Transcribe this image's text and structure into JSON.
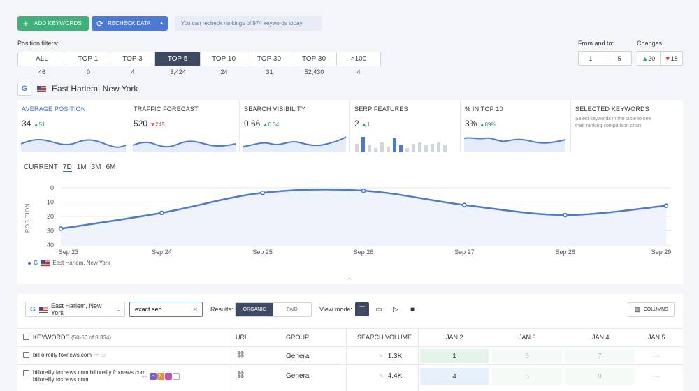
{
  "toolbar": {
    "add_keywords": "ADD KEYWORDS",
    "recheck_data": "RECHECK DATA",
    "recheck_note": "You can recheck rankings of 974 keywords today"
  },
  "position_filters": {
    "label": "Position filters:",
    "items": [
      {
        "label": "ALL",
        "count": "46"
      },
      {
        "label": "TOP 1",
        "count": "0"
      },
      {
        "label": "TOP 3",
        "count": "4"
      },
      {
        "label": "TOP 5",
        "count": "3,424"
      },
      {
        "label": "TOP 10",
        "count": "24"
      },
      {
        "label": "TOP 30",
        "count": "31"
      },
      {
        "label": "TOP 30",
        "count": "52,430"
      },
      {
        "label": ">100",
        "count": "4"
      }
    ],
    "active_index": 3
  },
  "range": {
    "label": "From and to:",
    "from": "1",
    "sep": "-",
    "to": "5"
  },
  "changes": {
    "label": "Changes:",
    "up": "20",
    "down": "18"
  },
  "location": {
    "engine": "G",
    "name": "East Harlem, New York"
  },
  "metrics": [
    {
      "title": "AVERAGE POSITION",
      "value": "34",
      "delta": "51",
      "dir": "up"
    },
    {
      "title": "TRAFFIC FORECAST",
      "value": "520",
      "delta": "245",
      "dir": "down"
    },
    {
      "title": "SEARCH VISIBILITY",
      "value": "0.66",
      "delta": "0.34",
      "dir": "up"
    },
    {
      "title": "SERP FEATURES",
      "value": "2",
      "delta": "1",
      "dir": "up"
    },
    {
      "title": "% IN TOP 10",
      "value": "3%",
      "delta": "89%",
      "dir": "up"
    },
    {
      "title": "SELECTED KEYWORDS",
      "desc": "Select keywords in the table to see their ranking comparison chart"
    }
  ],
  "chart_tabs": [
    "CURRENT",
    "7D",
    "1M",
    "3M",
    "6M"
  ],
  "chart_data": {
    "type": "line",
    "title": "",
    "xlabel": "",
    "ylabel": "POSITION",
    "categories": [
      "Sep 23",
      "Sep 24",
      "Sep 25",
      "Sep 26",
      "Sep 27",
      "Sep 28",
      "Sep 29"
    ],
    "series": [
      {
        "name": "East Harlem, New York",
        "values": [
          28.5,
          17.5,
          3.5,
          2,
          12,
          19,
          12.5
        ]
      }
    ],
    "ylim": [
      0,
      40
    ],
    "yticks": [
      0,
      10,
      20,
      30,
      40
    ],
    "y_inverted": true,
    "grid": true,
    "legend": "bottom-left"
  },
  "table_toolbar": {
    "location": "East Harlem, New York",
    "search_value": "exact seo",
    "results_label": "Results:",
    "organic": "ORGANIC",
    "paid": "PAID",
    "view_mode_label": "View mode:",
    "columns": "COLUMNS"
  },
  "table": {
    "headers": {
      "keywords": "KEYWORDS",
      "count": "(50-60 of 8,334)",
      "url": "URL",
      "group": "GROUP",
      "volume": "SEARCH VOLUME",
      "jan2": "JAN 2",
      "jan3": "JAN 3",
      "jan4": "JAN 4",
      "jan5": "JAN 5"
    },
    "rows": [
      {
        "keyword": "bill o reilly foxnews.com",
        "group": "General",
        "volume": "1.3K",
        "jan2": "1",
        "jan3": "6",
        "jan4": "7",
        "jan5": "···"
      },
      {
        "keyword": "billoreilly foxnews com billoreilly foxnews com billoreilly foxnews com",
        "features": [
          "F",
          "K",
          "T"
        ],
        "group": "General",
        "volume": "4.4K",
        "jan2": "4",
        "jan3": "6",
        "jan4": "9",
        "jan5": "···"
      }
    ]
  },
  "colors": {
    "accent": "#3f6dc7",
    "green": "#3fb279",
    "dark": "#3e4a63",
    "up": "#2f9e63",
    "down": "#d94040"
  }
}
